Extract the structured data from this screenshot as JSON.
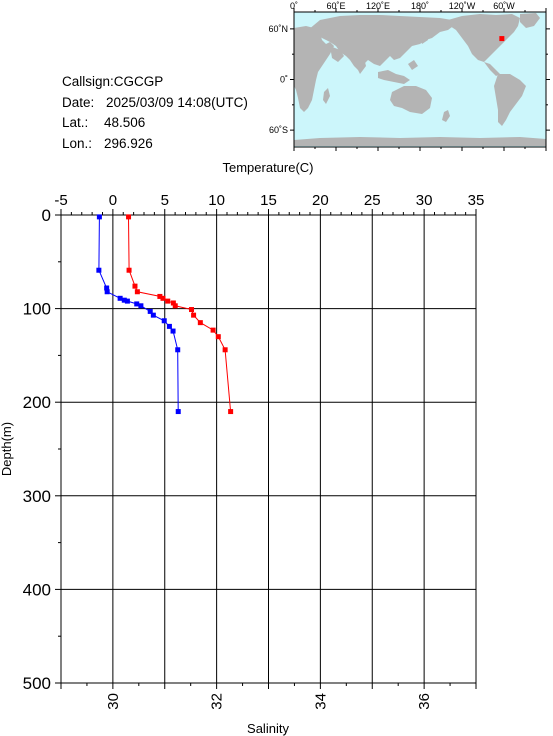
{
  "station": {
    "callsign_label": "Callsign:",
    "callsign": "CGCGP",
    "date_label": "Date:",
    "date": "2025/03/09 14:08(UTC)",
    "lat_label": "Lat.:",
    "lat": "48.506",
    "lon_label": "Lon.:",
    "lon": "296.926"
  },
  "map": {
    "top_labels": [
      "0˚",
      "60˚E",
      "120˚E",
      "180˚",
      "120˚W",
      "60˚W"
    ],
    "side_labels": [
      "60˚N",
      "0˚",
      "60˚S"
    ],
    "ocean_color": "#ccf6fb",
    "land_color": "#b4b4b4",
    "marker_color": "#ff0000",
    "marker_lat": 48.506,
    "marker_lon": 296.926
  },
  "chart_data": {
    "type": "line",
    "top_axis_label": "Temperature(C)",
    "bottom_axis_label": "Salinity",
    "left_axis_label": "Depth(m)",
    "temperature_range": [
      -5,
      35
    ],
    "temperature_ticks": [
      "-5",
      "0",
      "5",
      "10",
      "15",
      "20",
      "25",
      "30",
      "35"
    ],
    "salinity_range": [
      29,
      37
    ],
    "salinity_ticks": [
      "30",
      "32",
      "34",
      "36"
    ],
    "depth_range": [
      0,
      500
    ],
    "depth_ticks": [
      "0",
      "100",
      "200",
      "300",
      "400",
      "500"
    ],
    "series": [
      {
        "quantity": "temperature",
        "color": "#ff0000",
        "depth": [
          2,
          59,
          76,
          82,
          87,
          89,
          92,
          94,
          97,
          101,
          107,
          115,
          123,
          130,
          144,
          210
        ],
        "values": [
          1.51,
          1.56,
          2.13,
          2.36,
          4.53,
          4.83,
          5.29,
          5.83,
          6.01,
          7.58,
          7.78,
          8.43,
          9.66,
          10.16,
          10.82,
          11.35
        ]
      },
      {
        "quantity": "salinity",
        "color": "#0000ff",
        "depth": [
          2,
          59,
          78,
          82,
          89,
          91,
          92,
          95,
          97,
          103,
          107,
          113,
          119,
          124,
          144,
          210
        ],
        "values": [
          29.74,
          29.73,
          29.88,
          29.89,
          30.14,
          30.22,
          30.28,
          30.46,
          30.54,
          30.72,
          30.78,
          30.99,
          31.09,
          31.16,
          31.25,
          31.26
        ]
      }
    ]
  }
}
